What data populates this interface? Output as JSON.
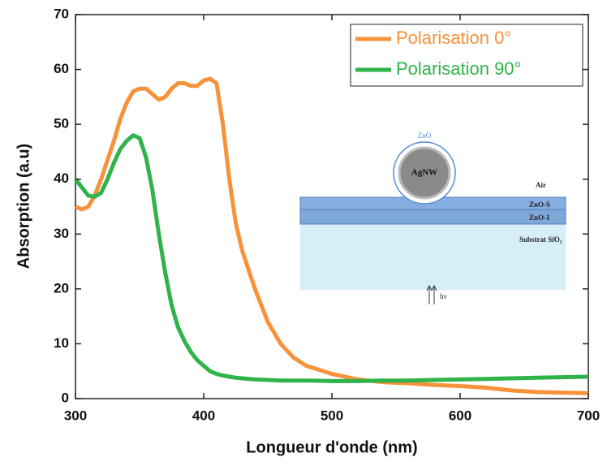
{
  "chart_data": {
    "type": "line",
    "xlabel": "Longueur d'onde (nm)",
    "ylabel": "Absorption (a.u)",
    "x": [
      300,
      305,
      310,
      315,
      320,
      325,
      330,
      335,
      340,
      345,
      350,
      355,
      360,
      365,
      370,
      375,
      380,
      385,
      390,
      395,
      400,
      405,
      410,
      415,
      420,
      425,
      430,
      440,
      450,
      460,
      470,
      480,
      500,
      520,
      540,
      560,
      580,
      600,
      620,
      640,
      660,
      680,
      700
    ],
    "series": [
      {
        "name": "Polarisation 0°",
        "color": "#f7923a",
        "values": [
          35,
          34.5,
          35,
          37,
          40,
          43.5,
          47,
          51,
          54,
          56,
          56.5,
          56.5,
          55.5,
          54.5,
          55,
          56.5,
          57.5,
          57.5,
          57,
          57,
          58,
          58.3,
          57.5,
          50,
          40,
          32,
          27,
          20,
          14,
          10,
          7.5,
          6,
          4.5,
          3.5,
          3,
          2.8,
          2.5,
          2.3,
          2,
          1.5,
          1.2,
          1.1,
          1
        ]
      },
      {
        "name": "Polarisation 90°",
        "color": "#2fb34a",
        "values": [
          40,
          38.5,
          37,
          36.8,
          37.5,
          40,
          43,
          45.5,
          47,
          48,
          47.5,
          44,
          38,
          30,
          23,
          17,
          13,
          10.5,
          8.5,
          7,
          6,
          5,
          4.5,
          4.2,
          4,
          3.8,
          3.7,
          3.5,
          3.4,
          3.3,
          3.3,
          3.3,
          3.2,
          3.2,
          3.3,
          3.3,
          3.4,
          3.5,
          3.6,
          3.7,
          3.8,
          3.9,
          4
        ]
      }
    ],
    "xlim": [
      300,
      700
    ],
    "xticks": [
      300,
      400,
      500,
      600,
      700
    ],
    "ylim": [
      0,
      70
    ],
    "yticks": [
      0,
      10,
      20,
      30,
      40,
      50,
      60,
      70
    ],
    "legend": "upper right",
    "annotations": [
      "ZnO",
      "AgNW",
      "Air",
      "ZnO-S",
      "ZnO-1",
      "Substrat SiO₂",
      "hν"
    ]
  }
}
